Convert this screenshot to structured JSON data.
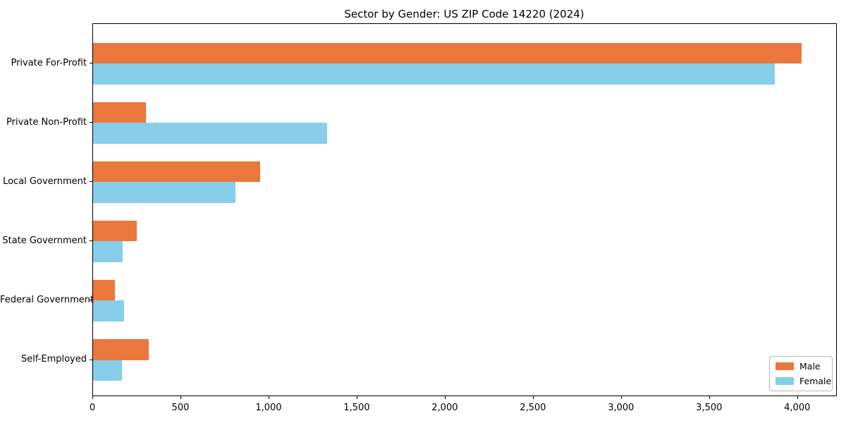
{
  "chart_data": {
    "type": "bar",
    "orientation": "horizontal",
    "title": "Sector by Gender: US ZIP Code 14220 (2024)",
    "categories": [
      "Private For-Profit",
      "Private Non-Profit",
      "Local Government",
      "State Government",
      "Federal Government",
      "Self-Employed"
    ],
    "series": [
      {
        "name": "Male",
        "color": "#EC773C",
        "values": [
          4020,
          300,
          950,
          250,
          125,
          315
        ]
      },
      {
        "name": "Female",
        "color": "#87CEEB",
        "values": [
          3870,
          1330,
          810,
          170,
          175,
          165
        ]
      }
    ],
    "xlabel": "",
    "ylabel": "",
    "xlim": [
      0,
      4217
    ],
    "xticks": [
      0,
      500,
      1000,
      1500,
      2000,
      2500,
      3000,
      3500,
      4000
    ],
    "xtick_labels": [
      "0",
      "500",
      "1,000",
      "1,500",
      "2,000",
      "2,500",
      "3,000",
      "3,500",
      "4,000"
    ],
    "grid": false,
    "legend": {
      "position": "lower right",
      "entries": [
        "Male",
        "Female"
      ]
    },
    "colors": {
      "background": "#ffffff",
      "spine": "#000000",
      "male": "#EC773C",
      "female": "#87CEEB"
    }
  }
}
